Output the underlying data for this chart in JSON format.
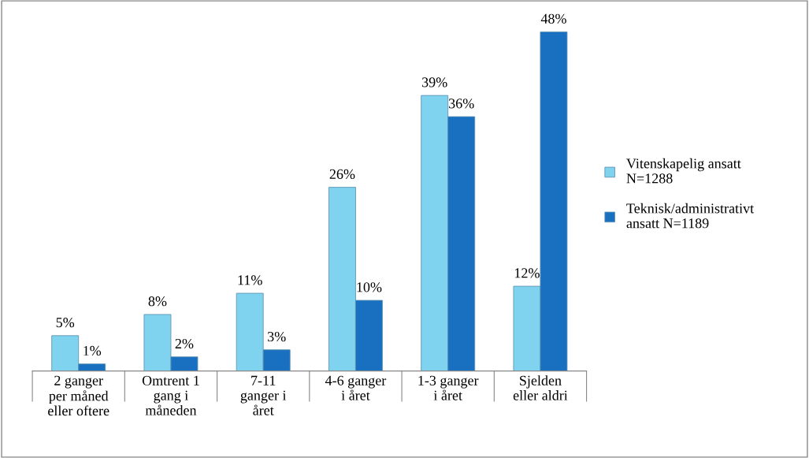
{
  "chart_data": {
    "type": "bar",
    "categories": [
      "2 ganger\nper måned\neller oftere",
      "Omtrent 1\ngang i\nmåneden",
      "7-11\nganger i\nåret",
      "4-6 ganger\ni året",
      "1-3 ganger\ni året",
      "Sjelden\neller aldri"
    ],
    "series": [
      {
        "name": "Vitenskapelig ansatt\nN=1288",
        "color": "#7fd3ef",
        "values": [
          5,
          8,
          11,
          26,
          39,
          12
        ],
        "value_labels": [
          "5%",
          "8%",
          "11%",
          "26%",
          "39%",
          "12%"
        ]
      },
      {
        "name": "Teknisk/administrativt\nansatt N=1189",
        "color": "#1a70c0",
        "values": [
          1,
          2,
          3,
          10,
          36,
          48
        ],
        "value_labels": [
          "1%",
          "2%",
          "3%",
          "10%",
          "36%",
          "48%"
        ]
      }
    ],
    "legend": "right",
    "grid": false
  }
}
